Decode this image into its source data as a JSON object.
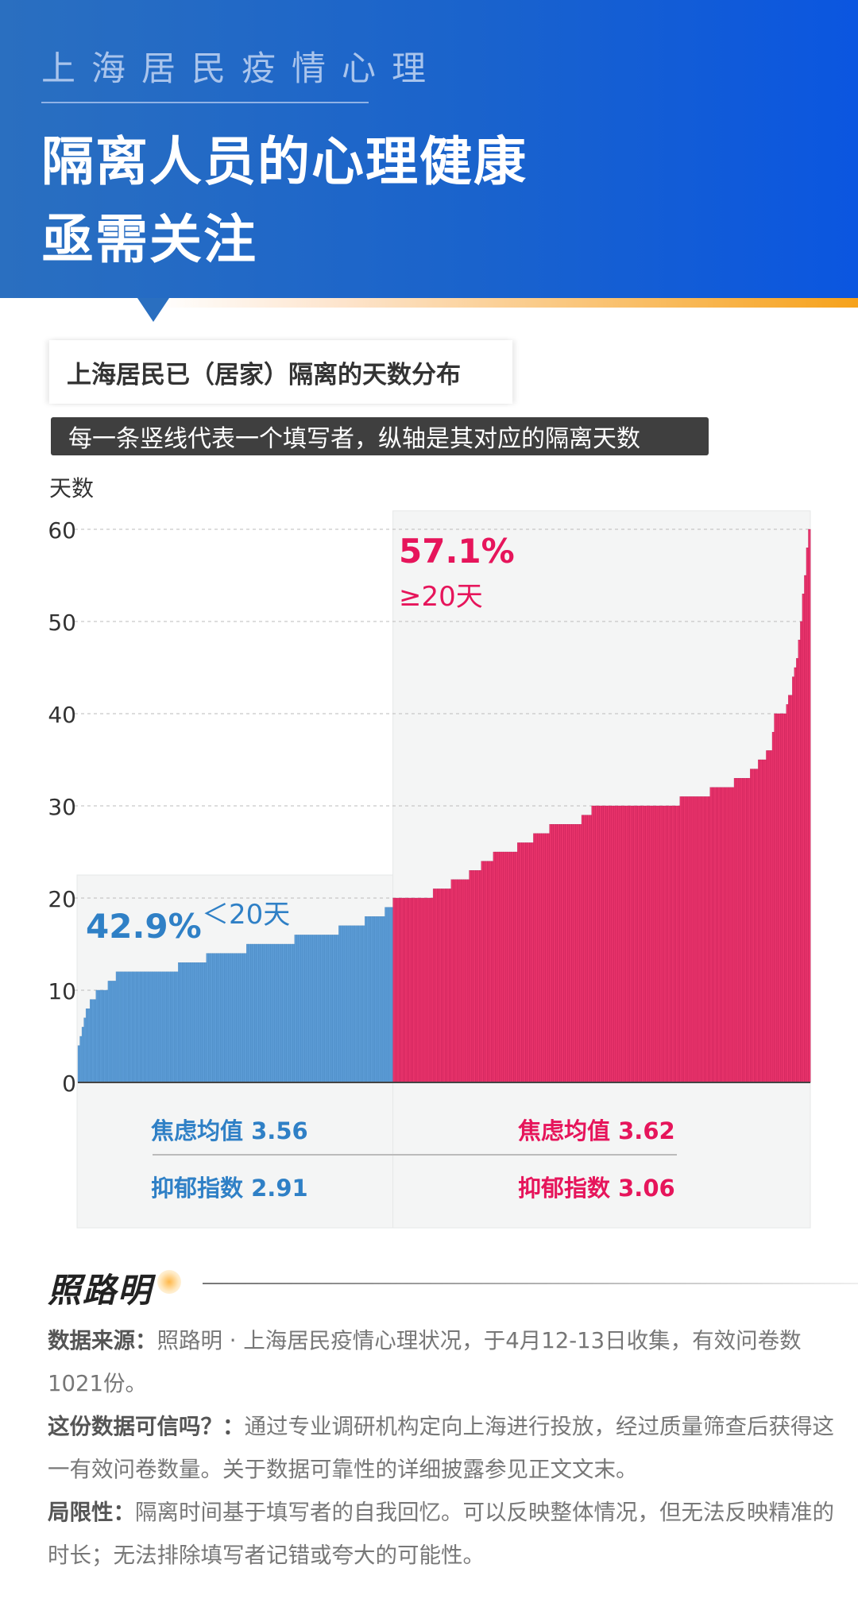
{
  "header": {
    "kicker": "上海居民疫情心理",
    "title_line1": "隔离人员的心理健康",
    "title_line2": "亟需关注"
  },
  "colors": {
    "header_blue": "#1a63cc",
    "blue_bars": "#5b9bd5",
    "pink_bars": "#e8336b",
    "accent_orange": "#f6a21b"
  },
  "chart_title": "上海居民已（居家）隔离的天数分布",
  "chart_subtitle": "每一条竖线代表一个填写者，纵轴是其对应的隔离天数",
  "chart_data": {
    "type": "bar",
    "ylabel": "天数",
    "ylim": [
      0,
      60
    ],
    "yticks": [
      "0",
      "10",
      "20",
      "30",
      "40",
      "50",
      "60"
    ],
    "grid": true,
    "groups": [
      {
        "name": "<20天",
        "pct_label": "42.9%",
        "range_label": "＜20天",
        "values": [
          4,
          5,
          6,
          7,
          8,
          8,
          9,
          9,
          9,
          10,
          10,
          10,
          10,
          10,
          10,
          11,
          11,
          11,
          11,
          12,
          12,
          12,
          12,
          12,
          12,
          12,
          12,
          12,
          12,
          12,
          12,
          12,
          12,
          12,
          12,
          12,
          12,
          12,
          12,
          12,
          12,
          12,
          12,
          12,
          12,
          12,
          12,
          12,
          12,
          12,
          13,
          13,
          13,
          13,
          13,
          13,
          13,
          13,
          13,
          13,
          13,
          13,
          13,
          13,
          14,
          14,
          14,
          14,
          14,
          14,
          14,
          14,
          14,
          14,
          14,
          14,
          14,
          14,
          14,
          14,
          14,
          14,
          14,
          14,
          15,
          15,
          15,
          15,
          15,
          15,
          15,
          15,
          15,
          15,
          15,
          15,
          15,
          15,
          15,
          15,
          15,
          15,
          15,
          15,
          15,
          15,
          15,
          15,
          16,
          16,
          16,
          16,
          16,
          16,
          16,
          16,
          16,
          16,
          16,
          16,
          16,
          16,
          16,
          16,
          16,
          16,
          16,
          16,
          16,
          16,
          17,
          17,
          17,
          17,
          17,
          17,
          17,
          17,
          17,
          17,
          17,
          17,
          17,
          18,
          18,
          18,
          18,
          18,
          18,
          18,
          18,
          18,
          18,
          19,
          19,
          19,
          19
        ]
      },
      {
        "name": "≥20天",
        "pct_label": "57.1%",
        "range_label": "≥20天",
        "values": [
          20,
          20,
          20,
          20,
          20,
          20,
          20,
          20,
          20,
          20,
          20,
          20,
          20,
          20,
          20,
          20,
          20,
          20,
          20,
          20,
          21,
          21,
          21,
          21,
          21,
          21,
          21,
          21,
          21,
          22,
          22,
          22,
          22,
          22,
          22,
          22,
          22,
          22,
          23,
          23,
          23,
          23,
          23,
          23,
          24,
          24,
          24,
          24,
          24,
          24,
          25,
          25,
          25,
          25,
          25,
          25,
          25,
          25,
          25,
          25,
          25,
          25,
          26,
          26,
          26,
          26,
          26,
          26,
          26,
          26,
          27,
          27,
          27,
          27,
          27,
          27,
          27,
          27,
          28,
          28,
          28,
          28,
          28,
          28,
          28,
          28,
          28,
          28,
          28,
          28,
          28,
          28,
          28,
          28,
          29,
          29,
          29,
          29,
          29,
          30,
          30,
          30,
          30,
          30,
          30,
          30,
          30,
          30,
          30,
          30,
          30,
          30,
          30,
          30,
          30,
          30,
          30,
          30,
          30,
          30,
          30,
          30,
          30,
          30,
          30,
          30,
          30,
          30,
          30,
          30,
          30,
          30,
          30,
          30,
          30,
          30,
          30,
          30,
          30,
          30,
          30,
          30,
          30,
          31,
          31,
          31,
          31,
          31,
          31,
          31,
          31,
          31,
          31,
          31,
          31,
          31,
          31,
          31,
          32,
          32,
          32,
          32,
          32,
          32,
          32,
          32,
          32,
          32,
          32,
          32,
          33,
          33,
          33,
          33,
          33,
          33,
          33,
          33,
          34,
          34,
          34,
          34,
          35,
          35,
          35,
          35,
          36,
          36,
          36,
          38,
          40,
          40,
          40,
          40,
          40,
          40,
          41,
          42,
          42,
          44,
          45,
          46,
          48,
          50,
          53,
          55,
          58,
          60
        ]
      }
    ]
  },
  "stats": {
    "left": {
      "anxiety_label": "焦虑均值",
      "anxiety_value": "3.56",
      "depression_label": "抑郁指数",
      "depression_value": "2.91"
    },
    "right": {
      "anxiety_label": "焦虑均值",
      "anxiety_value": "3.62",
      "depression_label": "抑郁指数",
      "depression_value": "3.06"
    }
  },
  "brand": "照路明",
  "notes": [
    {
      "label": "数据来源：",
      "text": "照路明 · 上海居民疫情心理状况，于4月12-13日收集，有效问卷数1021份。"
    },
    {
      "label": "这份数据可信吗？：",
      "text": "通过专业调研机构定向上海进行投放，经过质量筛查后获得这一有效问卷数量。关于数据可靠性的详细披露参见正文文末。"
    },
    {
      "label": "局限性：",
      "text": "隔离时间基于填写者的自我回忆。可以反映整体情况，但无法反映精准的时长；无法排除填写者记错或夸大的可能性。"
    }
  ]
}
